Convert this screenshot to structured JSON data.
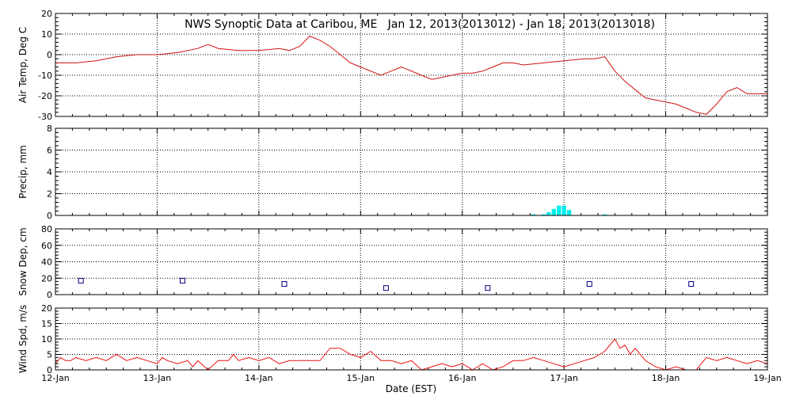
{
  "chart_data": {
    "type": "line",
    "title": "NWS Synoptic Data at Caribou, ME   Jan 12, 2013(2013012) - Jan 18, 2013(2013018)",
    "xlabel": "Date (EST)",
    "x_range": [
      "12-Jan",
      "19-Jan"
    ],
    "x_tick_labels": [
      "12-Jan",
      "13-Jan",
      "14-Jan",
      "15-Jan",
      "16-Jan",
      "17-Jan",
      "18-Jan",
      "19-Jan"
    ],
    "grid": true,
    "colors": {
      "temp": "#d01010",
      "precip": "#00eeee",
      "snow": "#000080",
      "wind": "#ee1010"
    },
    "panels": [
      {
        "type": "line",
        "ylabel": "Air Temp, Deg C",
        "ylim": [
          -30,
          20
        ],
        "yticks": [
          -30,
          -20,
          -10,
          0,
          10,
          20
        ],
        "series": [
          {
            "x": [
              0,
              0.2,
              0.4,
              0.6,
              0.8,
              1.0,
              1.2,
              1.4,
              1.5,
              1.6,
              1.8,
              2.0,
              2.2,
              2.3,
              2.4,
              2.5,
              2.6,
              2.7,
              2.8,
              2.9,
              3.0,
              3.2,
              3.3,
              3.4,
              3.6,
              3.7,
              3.8,
              3.9,
              4.0,
              4.1,
              4.2,
              4.3,
              4.4,
              4.5,
              4.6,
              4.8,
              5.0,
              5.2,
              5.3,
              5.4,
              5.5,
              5.6,
              5.7,
              5.8,
              5.9,
              6.0,
              6.1,
              6.2,
              6.3,
              6.4,
              6.5,
              6.6,
              6.7,
              6.8,
              6.9,
              7.0
            ],
            "y": [
              -4,
              -4,
              -3,
              -1,
              0,
              0,
              1,
              3,
              5,
              3,
              2,
              2,
              3,
              2,
              4,
              9,
              7,
              4,
              0,
              -4,
              -6,
              -10,
              -8,
              -6,
              -10,
              -12,
              -11,
              -10,
              -9,
              -9,
              -8,
              -6,
              -4,
              -4,
              -5,
              -4,
              -3,
              -2,
              -2,
              -1,
              -8,
              -13,
              -17,
              -21,
              -22,
              -23,
              -24,
              -26,
              -28,
              -29,
              -24,
              -18,
              -16,
              -19,
              -19,
              -19
            ]
          }
        ]
      },
      {
        "type": "bar",
        "ylabel": "Precip, mm",
        "ylim": [
          0,
          8
        ],
        "yticks": [
          0,
          2,
          4,
          6,
          8
        ],
        "series": [
          {
            "x": [
              4.7,
              4.8,
              4.85,
              4.9,
              4.95,
              5.0,
              5.05,
              5.4
            ],
            "y": [
              0.1,
              0.1,
              0.3,
              0.6,
              0.9,
              0.9,
              0.5,
              0.1
            ]
          }
        ]
      },
      {
        "type": "scatter",
        "ylabel": "Snow Dep, cm",
        "ylim": [
          0,
          80
        ],
        "yticks": [
          0,
          20,
          40,
          60,
          80
        ],
        "series": [
          {
            "x": [
              0.25,
              1.25,
              2.25,
              3.25,
              4.25,
              5.25,
              6.25
            ],
            "y": [
              17,
              17,
              13,
              8,
              8,
              13,
              13
            ]
          }
        ]
      },
      {
        "type": "line",
        "ylabel": "Wind Spd, m/s",
        "ylim": [
          0,
          20
        ],
        "yticks": [
          0,
          5,
          10,
          15,
          20
        ],
        "series": [
          {
            "x": [
              0,
              0.05,
              0.1,
              0.15,
              0.2,
              0.3,
              0.4,
              0.5,
              0.6,
              0.7,
              0.8,
              0.9,
              1.0,
              1.05,
              1.1,
              1.2,
              1.3,
              1.35,
              1.4,
              1.5,
              1.6,
              1.7,
              1.75,
              1.8,
              1.9,
              2.0,
              2.1,
              2.2,
              2.3,
              2.4,
              2.5,
              2.6,
              2.7,
              2.8,
              2.9,
              3.0,
              3.1,
              3.2,
              3.3,
              3.4,
              3.5,
              3.6,
              3.7,
              3.8,
              3.9,
              4.0,
              4.1,
              4.2,
              4.3,
              4.4,
              4.5,
              4.6,
              4.7,
              4.8,
              4.9,
              5.0,
              5.1,
              5.2,
              5.3,
              5.4,
              5.5,
              5.55,
              5.6,
              5.65,
              5.7,
              5.8,
              5.9,
              6.0,
              6.1,
              6.2,
              6.3,
              6.4,
              6.5,
              6.6,
              6.7,
              6.8,
              6.9,
              7.0
            ],
            "y": [
              2,
              4,
              3,
              3,
              4,
              3,
              4,
              3,
              5,
              3,
              4,
              3,
              2,
              4,
              3,
              2,
              3,
              1,
              3,
              0,
              3,
              3,
              5,
              3,
              4,
              3,
              4,
              2,
              3,
              3,
              3,
              3,
              7,
              7,
              5,
              4,
              6,
              3,
              3,
              2,
              3,
              0,
              1,
              2,
              1,
              2,
              0,
              2,
              0,
              1,
              3,
              3,
              4,
              3,
              2,
              1,
              2,
              3,
              4,
              6,
              10,
              7,
              8,
              5,
              7,
              3,
              1,
              0,
              1,
              0,
              0,
              4,
              3,
              4,
              3,
              2,
              3,
              2
            ]
          }
        ]
      }
    ]
  }
}
